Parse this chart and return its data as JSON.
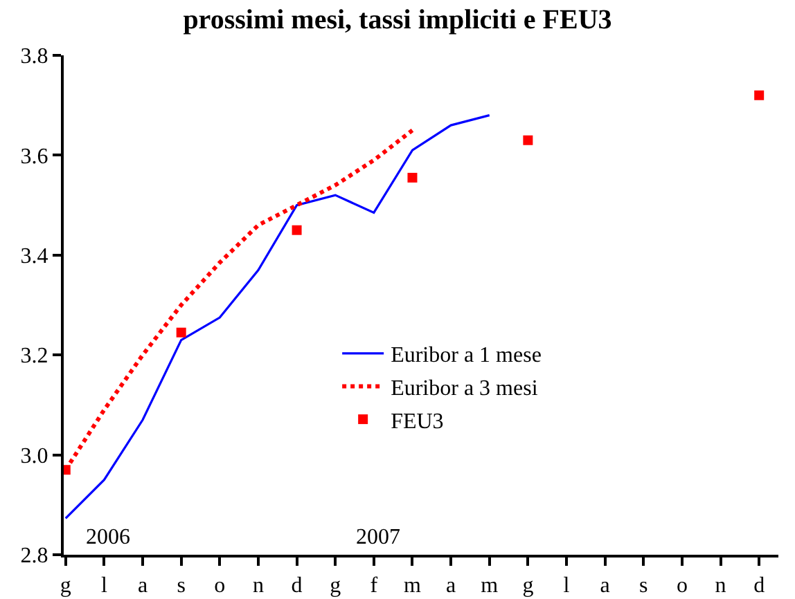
{
  "chart_data": {
    "type": "line",
    "title": "prossimi mesi, tassi impliciti e FEU3",
    "categories": [
      "g",
      "l",
      "a",
      "s",
      "o",
      "n",
      "d",
      "g",
      "f",
      "m",
      "a",
      "m",
      "g",
      "l",
      "a",
      "s",
      "o",
      "n",
      "d"
    ],
    "series": [
      {
        "name": "Euribor a 1 mese",
        "color": "#0000ff",
        "line_style": "solid",
        "values": [
          2.873,
          2.95,
          3.07,
          3.23,
          3.275,
          3.37,
          3.5,
          3.52,
          3.485,
          3.61,
          3.66,
          3.68,
          null,
          null,
          null,
          null,
          null,
          null,
          null
        ]
      },
      {
        "name": "Euribor a 3 mesi",
        "color": "#ff0000",
        "line_style": "dotted",
        "values": [
          2.97,
          3.09,
          3.2,
          3.3,
          3.385,
          3.46,
          3.5,
          3.54,
          3.59,
          3.65,
          null,
          null,
          null,
          null,
          null,
          null,
          null,
          null,
          null
        ]
      },
      {
        "name": "FEU3",
        "type": "scatter",
        "marker": "square",
        "color": "#ff0000",
        "values": [
          2.97,
          null,
          null,
          3.245,
          null,
          null,
          3.45,
          null,
          null,
          3.555,
          null,
          null,
          3.63,
          null,
          null,
          null,
          null,
          null,
          3.72
        ]
      }
    ],
    "ylim": [
      2.8,
      3.8
    ],
    "yticks": [
      2.8,
      {
        "value": 3,
        "label": "3.0"
      },
      3.2,
      3.4,
      3.6,
      3.8
    ],
    "annotations": [
      "2006",
      "2007"
    ],
    "grid": false,
    "legend": "center",
    "marker": "none"
  }
}
